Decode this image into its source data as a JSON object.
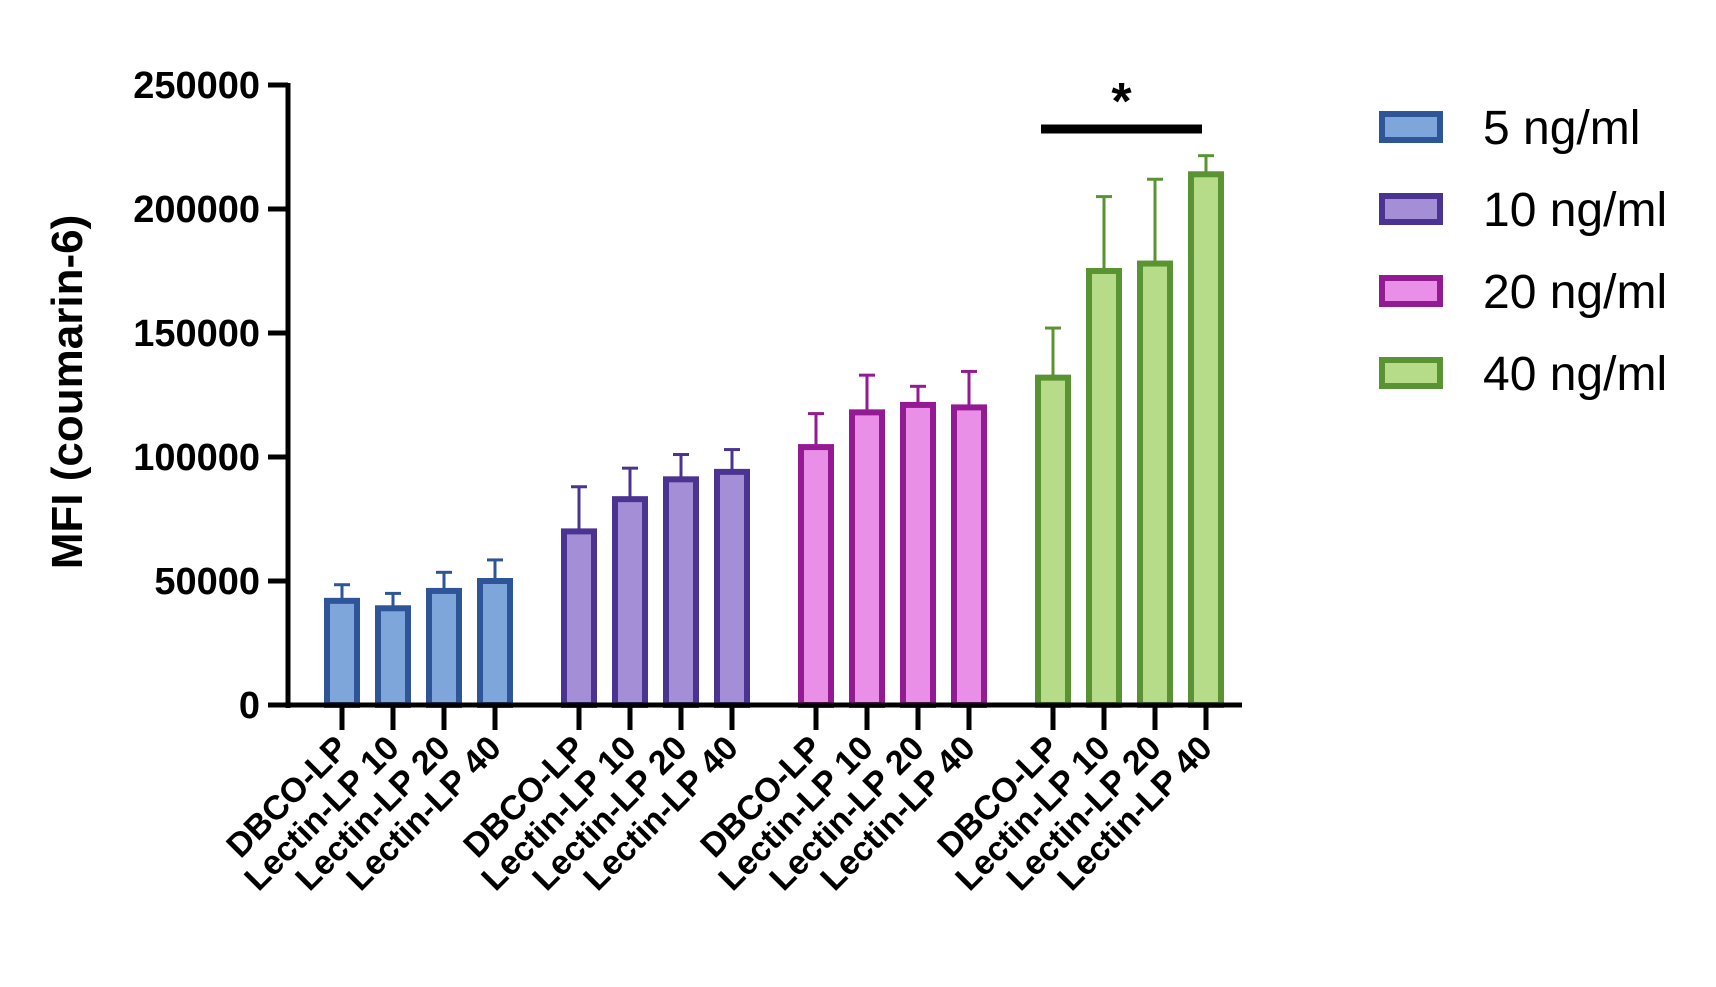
{
  "chart_data": {
    "type": "bar",
    "title": "",
    "ylabel": "MFI (coumarin-6)",
    "xlabel": "",
    "ylim": [
      0,
      250000
    ],
    "yticks": [
      0,
      50000,
      100000,
      150000,
      200000,
      250000
    ],
    "ytick_labels": [
      "0",
      "50000",
      "100000",
      "150000",
      "200000",
      "250000"
    ],
    "categories": [
      "DBCO-LP",
      "Lectin-LP 10",
      "Lectin-LP 20",
      "Lectin-LP 40"
    ],
    "grid": false,
    "legend_position": "right",
    "series": [
      {
        "name": "5 ng/ml",
        "values": [
          42000,
          39000,
          46000,
          50000
        ],
        "errors": [
          6500,
          6000,
          7500,
          8500
        ],
        "color": "#2d5597",
        "fill": "#7fa6da"
      },
      {
        "name": "10 ng/ml",
        "values": [
          70000,
          83000,
          91000,
          94000
        ],
        "errors": [
          18000,
          12500,
          10000,
          9000
        ],
        "color": "#4b3491",
        "fill": "#a48fd6"
      },
      {
        "name": "20 ng/ml",
        "values": [
          104000,
          118000,
          121000,
          120000
        ],
        "errors": [
          13500,
          15000,
          7500,
          14500
        ],
        "color": "#941a93",
        "fill": "#ea8fe8"
      },
      {
        "name": "40 ng/ml",
        "values": [
          132000,
          175000,
          178000,
          214000
        ],
        "errors": [
          20000,
          30000,
          34000,
          7500
        ],
        "color": "#5a9432",
        "fill": "#b6dc8a"
      }
    ],
    "annotations": [
      {
        "text": "*",
        "series": "40 ng/ml",
        "from": "DBCO-LP",
        "to": "Lectin-LP 40"
      }
    ]
  }
}
